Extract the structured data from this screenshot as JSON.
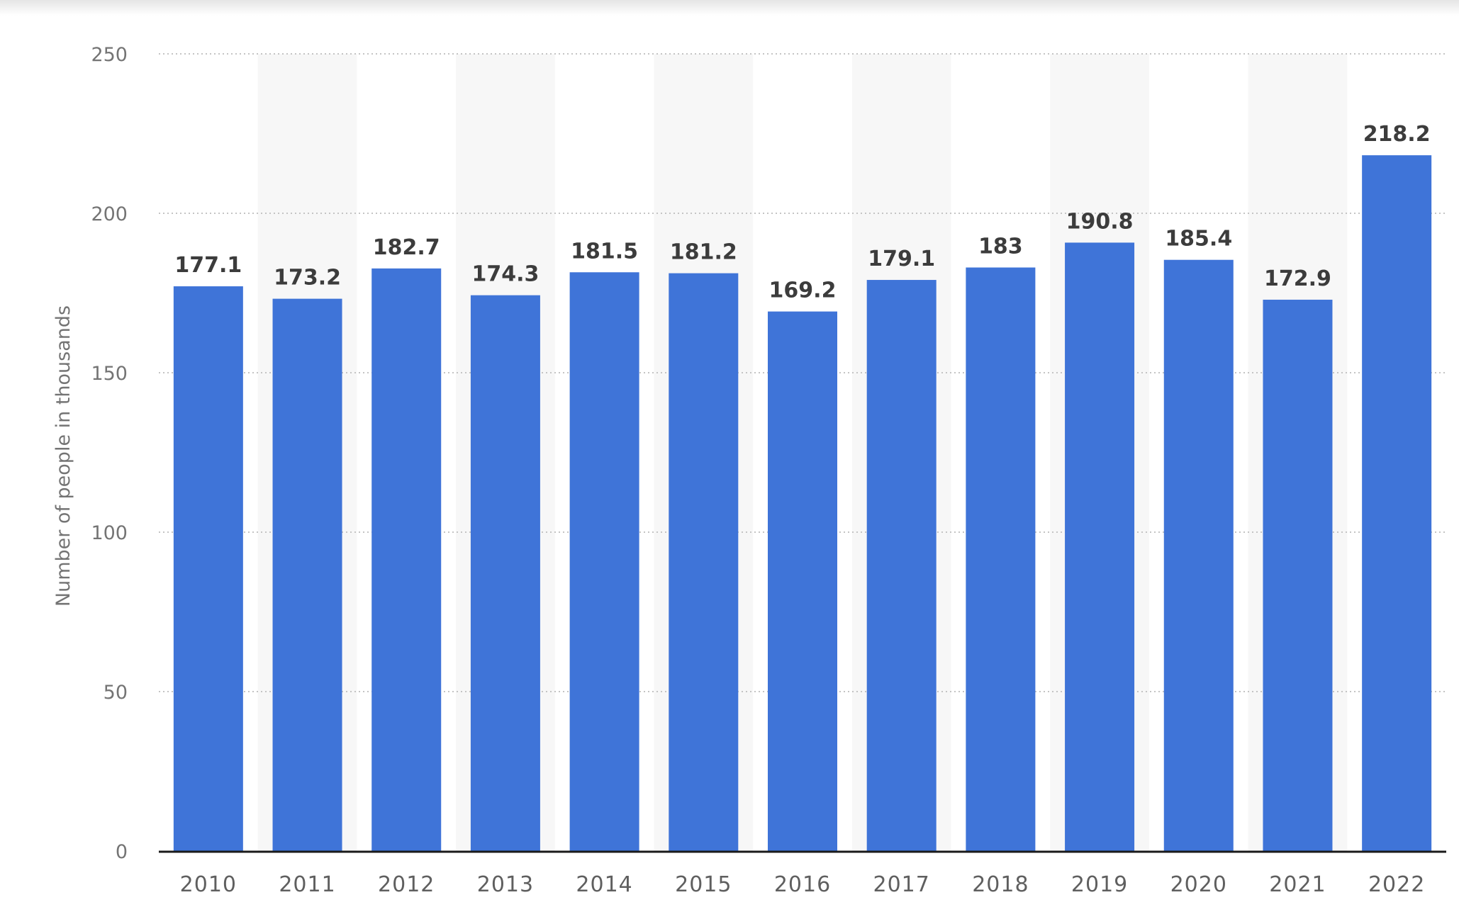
{
  "chart_data": {
    "type": "bar",
    "title": "",
    "xlabel": "",
    "ylabel": "Number of people in thousands",
    "categories": [
      "2010",
      "2011",
      "2012",
      "2013",
      "2014",
      "2015",
      "2016",
      "2017",
      "2018",
      "2019",
      "2020",
      "2021",
      "2022"
    ],
    "values": [
      177.1,
      173.2,
      182.7,
      174.3,
      181.5,
      181.2,
      169.2,
      179.1,
      183,
      190.8,
      185.4,
      172.9,
      218.2
    ],
    "data_labels": [
      "177.1",
      "173.2",
      "182.7",
      "174.3",
      "181.5",
      "181.2",
      "169.2",
      "179.1",
      "183",
      "190.8",
      "185.4",
      "172.9",
      "218.2"
    ],
    "ylim": [
      0,
      250
    ],
    "yticks": [
      0,
      50,
      100,
      150,
      200,
      250
    ],
    "grid": true,
    "alternating_column_shading": true,
    "bar_color": "#3f74d8",
    "column_shade_color": "#f7f7f7",
    "gridline_color": "#c4c4c4",
    "axis_color": "#1a1a1a"
  }
}
